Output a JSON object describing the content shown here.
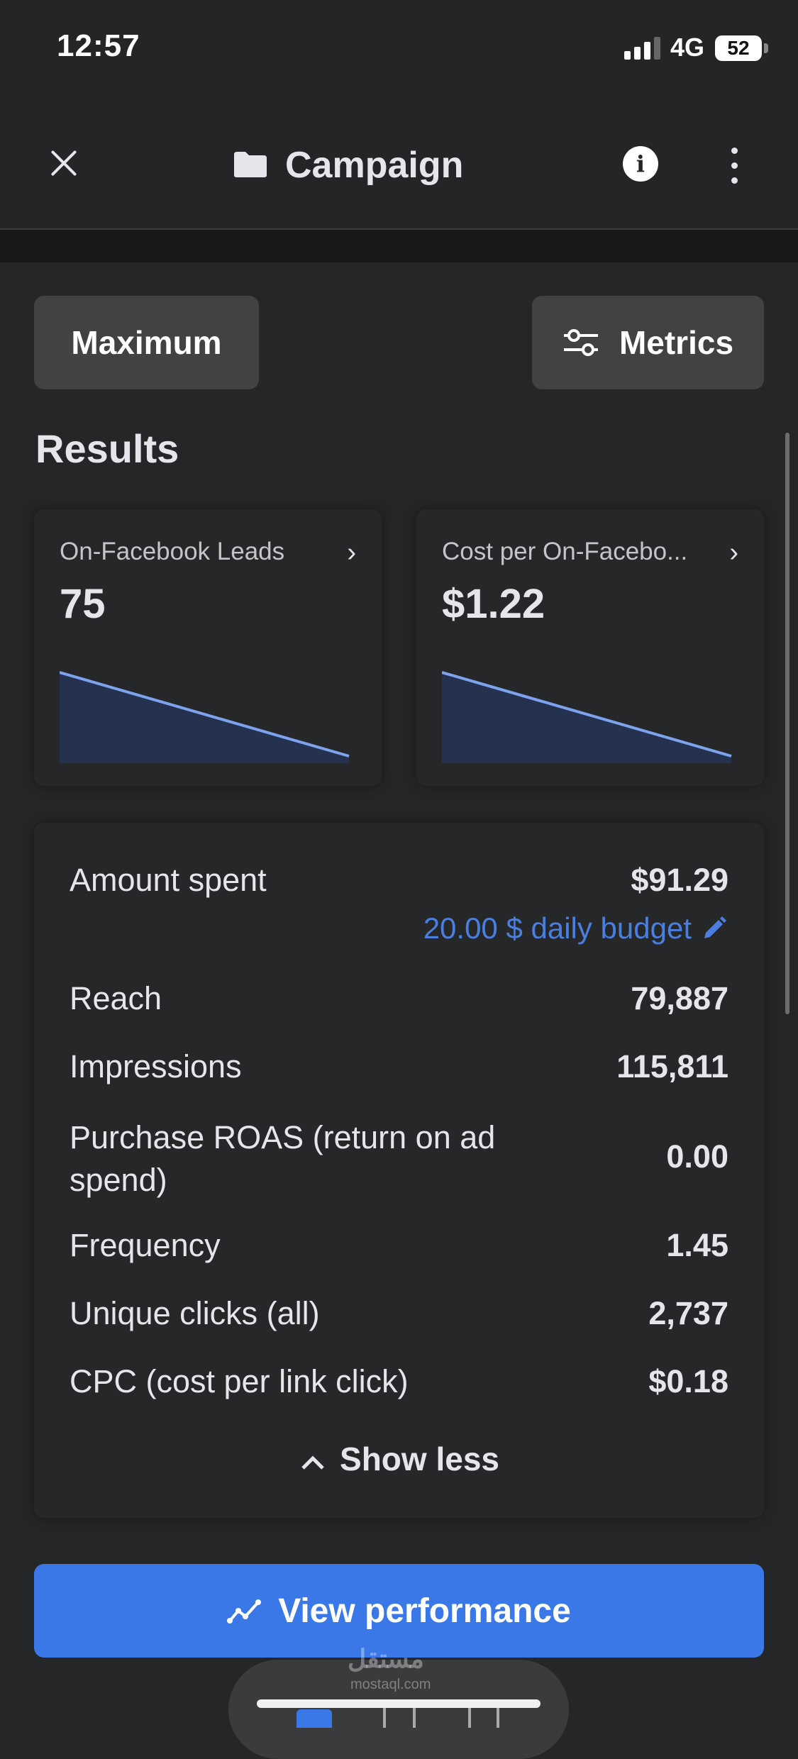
{
  "status_bar": {
    "time": "12:57",
    "network": "4G",
    "battery": "52"
  },
  "header": {
    "title": "Campaign",
    "icons": [
      "close-icon",
      "folder-icon",
      "info-icon",
      "more-vertical-icon"
    ]
  },
  "toolbar": {
    "date_range_label": "Maximum",
    "metrics_label": "Metrics"
  },
  "results": {
    "heading": "Results",
    "cards": [
      {
        "label": "On-Facebook Leads",
        "value": "75"
      },
      {
        "label": "Cost per On-Facebo...",
        "value": "$1.22"
      }
    ]
  },
  "details": {
    "amount_spent": {
      "label": "Amount spent",
      "value": "$91.29",
      "budget": "20.00 $ daily budget"
    },
    "rows": [
      {
        "label": "Reach",
        "value": "79,887"
      },
      {
        "label": "Impressions",
        "value": "115,811"
      },
      {
        "label": "Purchase ROAS (return on ad spend)",
        "value": "0.00"
      },
      {
        "label": "Frequency",
        "value": "1.45"
      },
      {
        "label": "Unique clicks (all)",
        "value": "2,737"
      },
      {
        "label": "CPC (cost per link click)",
        "value": "$0.18"
      }
    ],
    "show_less": "Show less"
  },
  "cta": {
    "label": "View performance"
  },
  "watermark": {
    "brand": "مستقل",
    "domain": "mostaql.com"
  },
  "colors": {
    "accent": "#3b78e7",
    "link": "#4a7fe0",
    "background": "#252627",
    "card": "#262728",
    "spark_line": "#7ea3ee",
    "spark_fill": "#25324f"
  }
}
